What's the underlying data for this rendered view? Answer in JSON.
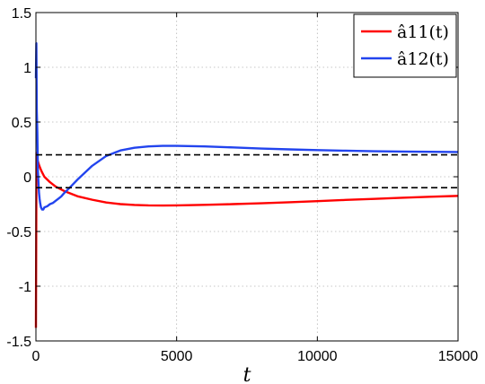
{
  "chart_data": {
    "type": "line",
    "title": "",
    "xlabel": "t",
    "ylabel": "",
    "xlim": [
      0,
      15000
    ],
    "ylim": [
      -1.5,
      1.5
    ],
    "xticks": [
      0,
      5000,
      10000,
      15000
    ],
    "xtick_labels": [
      "0",
      "5000",
      "10000",
      "15000"
    ],
    "yticks": [
      -1.5,
      -1,
      -0.5,
      0,
      0.5,
      1,
      1.5
    ],
    "ytick_labels": [
      "-1.5",
      "-1",
      "-0.5",
      "0",
      "0.5",
      "1",
      "1.5"
    ],
    "grid": true,
    "legend_position": "top-right",
    "series": [
      {
        "name": "â11(t)",
        "color": "#ff0000",
        "x": [
          0,
          20,
          60,
          120,
          200,
          300,
          500,
          700,
          1000,
          1500,
          2000,
          2500,
          3000,
          3500,
          4000,
          4500,
          5000,
          6000,
          7000,
          8000,
          9000,
          10000,
          11000,
          12000,
          13000,
          14000,
          15000
        ],
        "y": [
          -1.38,
          0.22,
          0.15,
          0.1,
          0.05,
          0.0,
          -0.05,
          -0.09,
          -0.13,
          -0.18,
          -0.21,
          -0.235,
          -0.25,
          -0.258,
          -0.262,
          -0.263,
          -0.262,
          -0.257,
          -0.25,
          -0.242,
          -0.233,
          -0.223,
          -0.212,
          -0.202,
          -0.192,
          -0.183,
          -0.175
        ]
      },
      {
        "name": "â12(t)",
        "color": "#2244ee",
        "x": [
          0,
          15,
          30,
          50,
          70,
          90,
          110,
          130,
          150,
          180,
          220,
          260,
          300,
          400,
          500,
          600,
          700,
          800,
          900,
          1000,
          1200,
          1500,
          2000,
          2500,
          3000,
          3500,
          4000,
          4500,
          5000,
          6000,
          7000,
          8000,
          9000,
          10000,
          11000,
          12000,
          13000,
          14000,
          15000
        ],
        "y": [
          0.9,
          1.22,
          0.6,
          0.4,
          0.05,
          -0.05,
          -0.15,
          -0.2,
          -0.24,
          -0.28,
          -0.3,
          -0.3,
          -0.28,
          -0.27,
          -0.25,
          -0.24,
          -0.22,
          -0.2,
          -0.18,
          -0.15,
          -0.1,
          -0.02,
          0.1,
          0.19,
          0.24,
          0.265,
          0.277,
          0.282,
          0.282,
          0.277,
          0.268,
          0.258,
          0.25,
          0.243,
          0.238,
          0.233,
          0.23,
          0.228,
          0.226
        ]
      },
      {
        "name": "",
        "color": "#000000",
        "style": "dashed",
        "x": [
          0,
          15000
        ],
        "y": [
          0.2,
          0.2
        ]
      },
      {
        "name": "",
        "color": "#000000",
        "style": "dashed",
        "x": [
          0,
          15000
        ],
        "y": [
          -0.1,
          -0.1
        ]
      }
    ]
  }
}
